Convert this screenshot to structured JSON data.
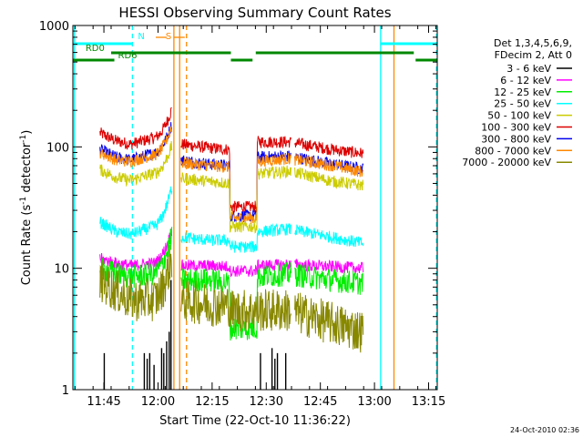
{
  "chart_data": {
    "type": "line",
    "title": "HESSI Observing Summary Count Rates",
    "xlabel": "Start Time (22-Oct-10 11:36:22)",
    "ylabel": "Count Rate (s",
    "ylabel_sup1": "-1",
    "ylabel_mid": " detector",
    "ylabel_sup2": "-1",
    "ylabel_end": ")",
    "y_scale": "log",
    "ylim": [
      1,
      1000
    ],
    "xlim_minutes": [
      0,
      101
    ],
    "x_ticks": [
      {
        "label": "11:45",
        "min": 8.6
      },
      {
        "label": "12:00",
        "min": 23.6
      },
      {
        "label": "12:15",
        "min": 38.6
      },
      {
        "label": "12:30",
        "min": 53.6
      },
      {
        "label": "12:45",
        "min": 68.6
      },
      {
        "label": "13:00",
        "min": 83.6
      },
      {
        "label": "13:15",
        "min": 98.6
      }
    ],
    "y_ticks": [
      {
        "label": "1",
        "value": 1
      },
      {
        "label": "10",
        "value": 10
      },
      {
        "label": "100",
        "value": 100
      },
      {
        "label": "1000",
        "value": 1000
      }
    ],
    "legend": {
      "placement": "right",
      "header1": "Det 1,3,4,5,6,9,",
      "header2": "FDecim 2, Att 0",
      "entries": [
        {
          "label": "3 - 6 keV",
          "color": "#000000"
        },
        {
          "label": "6 - 12 keV",
          "color": "#ff00ff"
        },
        {
          "label": "12 - 25 keV",
          "color": "#00ee00"
        },
        {
          "label": "25 - 50 keV",
          "color": "#00ffff"
        },
        {
          "label": "50 - 100 keV",
          "color": "#cccc00"
        },
        {
          "label": "100 - 300 keV",
          "color": "#dd0000"
        },
        {
          "label": "300 - 800 keV",
          "color": "#0000ee"
        },
        {
          "label": "800 - 7000 keV",
          "color": "#ff8800"
        },
        {
          "label": "7000 - 20000 keV",
          "color": "#888800"
        }
      ]
    },
    "segments": [
      [
        7.5,
        27.5
      ],
      [
        30.0,
        60.5
      ],
      [
        61.5,
        80.5
      ]
    ],
    "series": [
      {
        "name": "100 - 300 keV",
        "color": "#dd0000",
        "profile": [
          130,
          112,
          105,
          118,
          200,
          105,
          98,
          95,
          32,
          110,
          110,
          95,
          88
        ]
      },
      {
        "name": "300 - 800 keV",
        "color": "#0000ee",
        "profile": [
          95,
          82,
          78,
          88,
          150,
          78,
          72,
          70,
          27,
          82,
          84,
          72,
          66
        ]
      },
      {
        "name": "800 - 7000 keV",
        "color": "#ff8800",
        "profile": [
          90,
          78,
          76,
          85,
          145,
          74,
          70,
          68,
          26,
          76,
          80,
          70,
          62
        ]
      },
      {
        "name": "50 - 100 keV",
        "color": "#cccc00",
        "profile": [
          65,
          56,
          53,
          60,
          100,
          55,
          52,
          50,
          22,
          60,
          63,
          52,
          48
        ]
      },
      {
        "name": "25 - 50 keV",
        "color": "#00ffff",
        "profile": [
          24,
          20,
          19,
          22,
          45,
          18,
          17,
          17,
          15,
          20,
          21,
          18,
          16
        ]
      },
      {
        "name": "6 - 12 keV",
        "color": "#ff00ff",
        "profile": [
          12,
          11,
          10.5,
          11,
          20,
          10.5,
          10.5,
          10.3,
          9.5,
          10.5,
          10.7,
          10.3,
          10
        ]
      },
      {
        "name": "12 - 25 keV",
        "color": "#00ee00",
        "profile": [
          10,
          9,
          8.5,
          9,
          18,
          8,
          8,
          7.5,
          3.2,
          8.5,
          9,
          8,
          7.5
        ]
      },
      {
        "name": "7000 - 20000 keV",
        "color": "#888800",
        "profile": [
          8,
          6.5,
          5.5,
          5.5,
          12,
          5.5,
          5,
          5,
          4.5,
          4.5,
          4.5,
          3.5,
          3
        ]
      }
    ],
    "black_spikes_minutes": [
      {
        "min": 8.7,
        "val": 2.0
      },
      {
        "min": 19.8,
        "val": 2.0
      },
      {
        "min": 20.6,
        "val": 1.8
      },
      {
        "min": 21.3,
        "val": 2.0
      },
      {
        "min": 22.5,
        "val": 1.6
      },
      {
        "min": 24.6,
        "val": 2.2
      },
      {
        "min": 25.2,
        "val": 2.0
      },
      {
        "min": 26.0,
        "val": 2.5
      },
      {
        "min": 26.7,
        "val": 3.0
      },
      {
        "min": 27.2,
        "val": 8.0
      },
      {
        "min": 52.0,
        "val": 2.0
      },
      {
        "min": 55.2,
        "val": 2.2
      },
      {
        "min": 56.0,
        "val": 1.8
      },
      {
        "min": 56.7,
        "val": 2.0
      },
      {
        "min": 59.0,
        "val": 2.0
      }
    ],
    "vertical_lines": [
      {
        "label": "",
        "min": 0.4,
        "color": "#00ffff",
        "style": "solid"
      },
      {
        "label": "N",
        "min": 16.5,
        "color": "#00ffff",
        "style": "dashed"
      },
      {
        "label": "S",
        "min": 28.0,
        "color": "#ff8800",
        "style": "solid"
      },
      {
        "label": "",
        "min": 29.6,
        "color": "#ff8800",
        "style": "solid"
      },
      {
        "label": "",
        "min": 31.5,
        "color": "#ff8800",
        "style": "dashed"
      },
      {
        "label": "",
        "min": 85.3,
        "color": "#00ffff",
        "style": "solid"
      },
      {
        "label": "",
        "min": 89.0,
        "color": "#ff8800",
        "style": "solid"
      },
      {
        "label": "",
        "min": 100.8,
        "color": "#00ffff",
        "style": "dashed"
      }
    ],
    "bars": [
      {
        "label": "",
        "color": "#00ffff",
        "ranges": [
          [
            0,
            16.5
          ],
          [
            85.3,
            100.8
          ]
        ]
      },
      {
        "label": "RD0",
        "color": "#008800",
        "ranges": [
          [
            10.6,
            43.8
          ],
          [
            50.7,
            94.5
          ]
        ]
      },
      {
        "label": "RD6",
        "color": "#008800",
        "ranges": [
          [
            0,
            11.5
          ],
          [
            43.8,
            49.8
          ],
          [
            95.0,
            101
          ]
        ]
      }
    ],
    "bar_labels": [
      {
        "text": "RD0",
        "min": 3.5,
        "series": 1
      },
      {
        "text": "RD6",
        "min": 12.5,
        "series": 2
      }
    ]
  },
  "timestamp": "24-Oct-2010 02:36"
}
